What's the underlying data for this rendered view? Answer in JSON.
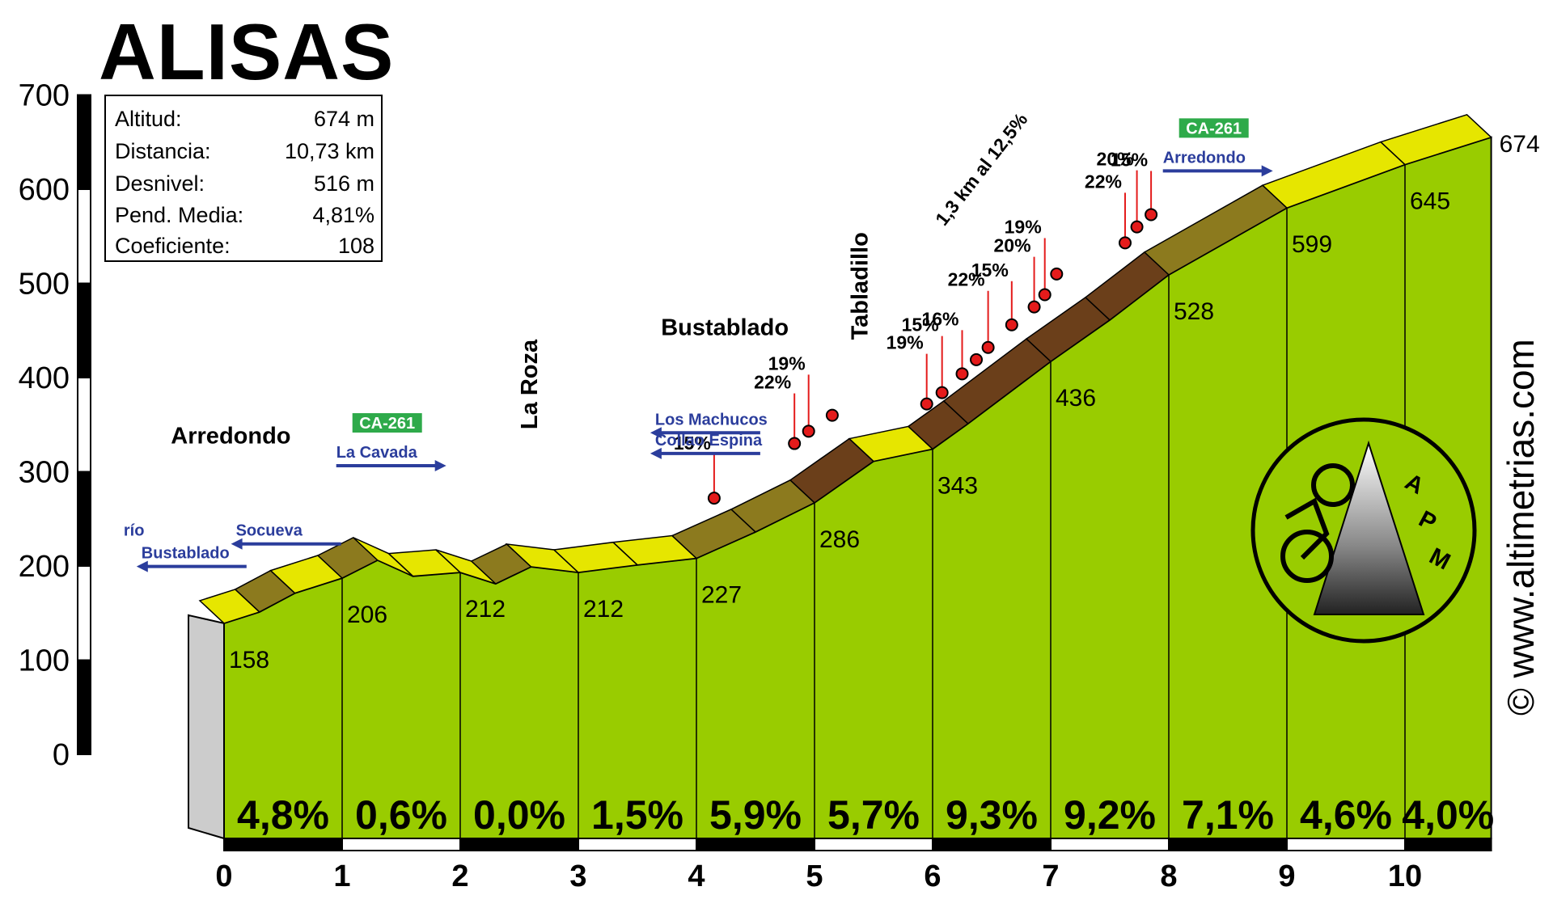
{
  "title": "ALISAS",
  "stats": [
    {
      "label": "Altitud:",
      "value": "674 m"
    },
    {
      "label": "Distancia:",
      "value": "10,73 km"
    },
    {
      "label": "Desnivel:",
      "value": "516 m"
    },
    {
      "label": "Pend. Media:",
      "value": "4,81%"
    },
    {
      "label": "Coeficiente:",
      "value": "108"
    }
  ],
  "copyright": "© www.altimetrias.com",
  "logo_text": [
    "A",
    "P",
    "M"
  ],
  "colors": {
    "ground": "#99cc00",
    "ground_dark": "#6f9a00",
    "slope_low": "#e6e600",
    "slope_mid": "#8c7a1e",
    "slope_high": "#6b3f1a",
    "road_blue": "#2b3d9c",
    "badge_green": "#2eaa4a",
    "marker_red": "#e41b1b"
  },
  "chart_data": {
    "type": "area",
    "xlabel": "",
    "ylabel": "",
    "xlim": [
      0,
      10.73
    ],
    "ylim": [
      0,
      700
    ],
    "x_ticks": [
      "0",
      "1",
      "2",
      "3",
      "4",
      "5",
      "6",
      "7",
      "8",
      "9",
      "10"
    ],
    "y_ticks": [
      "0",
      "100",
      "200",
      "300",
      "400",
      "500",
      "600",
      "700"
    ],
    "profile": [
      {
        "km": 0,
        "alt": 158
      },
      {
        "km": 0.3,
        "alt": 170
      },
      {
        "km": 0.6,
        "alt": 190
      },
      {
        "km": 1.0,
        "alt": 206
      },
      {
        "km": 1.3,
        "alt": 225
      },
      {
        "km": 1.6,
        "alt": 208
      },
      {
        "km": 2.0,
        "alt": 212
      },
      {
        "km": 2.3,
        "alt": 200
      },
      {
        "km": 2.6,
        "alt": 218
      },
      {
        "km": 3.0,
        "alt": 212
      },
      {
        "km": 3.5,
        "alt": 220
      },
      {
        "km": 4.0,
        "alt": 227
      },
      {
        "km": 4.5,
        "alt": 255
      },
      {
        "km": 5.0,
        "alt": 286
      },
      {
        "km": 5.5,
        "alt": 330
      },
      {
        "km": 6.0,
        "alt": 343
      },
      {
        "km": 6.3,
        "alt": 370
      },
      {
        "km": 7.0,
        "alt": 436
      },
      {
        "km": 7.5,
        "alt": 480
      },
      {
        "km": 8.0,
        "alt": 528
      },
      {
        "km": 9.0,
        "alt": 599
      },
      {
        "km": 10.0,
        "alt": 645
      },
      {
        "km": 10.73,
        "alt": 674
      }
    ],
    "km_altitudes": [
      {
        "km": 0,
        "alt": 158,
        "label": "158"
      },
      {
        "km": 1,
        "alt": 206,
        "label": "206"
      },
      {
        "km": 2,
        "alt": 212,
        "label": "212"
      },
      {
        "km": 3,
        "alt": 212,
        "label": "212"
      },
      {
        "km": 4,
        "alt": 227,
        "label": "227"
      },
      {
        "km": 5,
        "alt": 286,
        "label": "286"
      },
      {
        "km": 6,
        "alt": 343,
        "label": "343"
      },
      {
        "km": 7,
        "alt": 436,
        "label": "436"
      },
      {
        "km": 8,
        "alt": 528,
        "label": "528"
      },
      {
        "km": 9,
        "alt": 599,
        "label": "599"
      },
      {
        "km": 10,
        "alt": 645,
        "label": "645"
      },
      {
        "km": 10.73,
        "alt": 674,
        "label": "674"
      }
    ],
    "gradients": [
      {
        "km_start": 0,
        "km_end": 1,
        "label": "4,8%"
      },
      {
        "km_start": 1,
        "km_end": 2,
        "label": "0,6%"
      },
      {
        "km_start": 2,
        "km_end": 3,
        "label": "0,0%"
      },
      {
        "km_start": 3,
        "km_end": 4,
        "label": "1,5%"
      },
      {
        "km_start": 4,
        "km_end": 5,
        "label": "5,9%"
      },
      {
        "km_start": 5,
        "km_end": 6,
        "label": "5,7%"
      },
      {
        "km_start": 6,
        "km_end": 7,
        "label": "9,3%"
      },
      {
        "km_start": 7,
        "km_end": 8,
        "label": "9,2%"
      },
      {
        "km_start": 8,
        "km_end": 9,
        "label": "7,1%"
      },
      {
        "km_start": 9,
        "km_end": 10,
        "label": "4,6%"
      },
      {
        "km_start": 10,
        "km_end": 10.73,
        "label": "4,0%"
      }
    ],
    "steep_points": [
      {
        "km": 4.15,
        "alt": 272,
        "label": "15%"
      },
      {
        "km": 4.83,
        "alt": 330,
        "label": "22%"
      },
      {
        "km": 4.95,
        "alt": 343,
        "label": "19%"
      },
      {
        "km": 5.15,
        "alt": 360,
        "label": ""
      },
      {
        "km": 5.95,
        "alt": 372,
        "label": "19%"
      },
      {
        "km": 6.08,
        "alt": 384,
        "label": "15%"
      },
      {
        "km": 6.25,
        "alt": 404,
        "label": "16%"
      },
      {
        "km": 6.37,
        "alt": 419,
        "label": ""
      },
      {
        "km": 6.47,
        "alt": 432,
        "label": "22%"
      },
      {
        "km": 6.67,
        "alt": 456,
        "label": "15%"
      },
      {
        "km": 6.86,
        "alt": 475,
        "label": "20%"
      },
      {
        "km": 6.95,
        "alt": 488,
        "label": "19%"
      },
      {
        "km": 7.05,
        "alt": 510,
        "label": ""
      },
      {
        "km": 7.63,
        "alt": 543,
        "label": "22%"
      },
      {
        "km": 7.73,
        "alt": 560,
        "label": "20%"
      },
      {
        "km": 7.85,
        "alt": 573,
        "label": "15%"
      }
    ],
    "places": [
      {
        "name": "Arredondo",
        "km": -0.45,
        "alt": 330
      },
      {
        "name": "Bustablado",
        "km": 3.7,
        "alt": 445
      },
      {
        "name": "La Roza",
        "km": 2.65,
        "alt": 345,
        "rotate": true
      },
      {
        "name": "Tabladillo",
        "km": 5.45,
        "alt": 440,
        "rotate": true
      }
    ],
    "roads": [
      {
        "label": "Socueva",
        "km": 0.1,
        "alt": 232,
        "dir": "left"
      },
      {
        "label": "La Cavada",
        "km": 0.95,
        "alt": 315,
        "dir": "right",
        "badge": "CA-261"
      },
      {
        "label": "Los Machucos",
        "km": 3.65,
        "alt": 350,
        "dir": "left"
      },
      {
        "label": "Collao Espina",
        "km": 3.65,
        "alt": 328,
        "dir": "left"
      },
      {
        "label": "Arredondo",
        "km": 7.95,
        "alt": 628,
        "dir": "right",
        "badge": "CA-261"
      },
      {
        "label": "río",
        "km": -0.85,
        "alt": 232
      },
      {
        "label": "Bustablado",
        "km": -0.7,
        "alt": 208,
        "dir": "left"
      }
    ],
    "annotation": "1,3 km al 12,5%"
  }
}
